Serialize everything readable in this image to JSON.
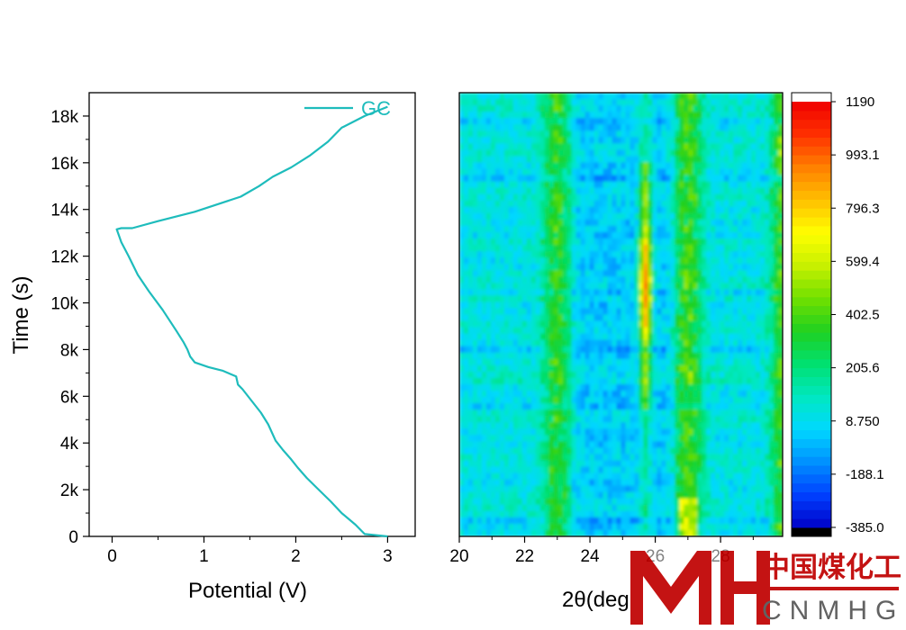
{
  "chart_data": [
    {
      "type": "line",
      "xlabel": "Potential (V)",
      "ylabel": "Time (s)",
      "xlim": [
        -0.25,
        3.3
      ],
      "ylim": [
        0,
        19000
      ],
      "xticks": [
        0,
        1,
        2,
        3
      ],
      "xtick_labels": [
        "0",
        "1",
        "2",
        "3"
      ],
      "yticks": [
        0,
        2000,
        4000,
        6000,
        8000,
        10000,
        12000,
        14000,
        16000,
        18000
      ],
      "ytick_labels": [
        "0",
        "2k",
        "4k",
        "6k",
        "8k",
        "10k",
        "12k",
        "14k",
        "16k",
        "18k"
      ],
      "grid": false,
      "legend_position": "top-right",
      "series": [
        {
          "name": "GC",
          "color": "#1ebcbc",
          "points": [
            [
              3.0,
              0
            ],
            [
              2.75,
              100
            ],
            [
              2.65,
              500
            ],
            [
              2.5,
              1000
            ],
            [
              2.38,
              1500
            ],
            [
              2.25,
              2000
            ],
            [
              2.12,
              2500
            ],
            [
              2.02,
              2950
            ],
            [
              1.95,
              3300
            ],
            [
              1.86,
              3700
            ],
            [
              1.78,
              4100
            ],
            [
              1.7,
              4800
            ],
            [
              1.62,
              5300
            ],
            [
              1.52,
              5800
            ],
            [
              1.42,
              6300
            ],
            [
              1.37,
              6500
            ],
            [
              1.35,
              6850
            ],
            [
              1.2,
              7100
            ],
            [
              1.05,
              7250
            ],
            [
              0.9,
              7450
            ],
            [
              0.85,
              7700
            ],
            [
              0.82,
              8000
            ],
            [
              0.78,
              8300
            ],
            [
              0.7,
              8800
            ],
            [
              0.55,
              9700
            ],
            [
              0.4,
              10500
            ],
            [
              0.28,
              11200
            ],
            [
              0.18,
              12000
            ],
            [
              0.1,
              12600
            ],
            [
              0.05,
              13150
            ],
            [
              0.1,
              13200
            ],
            [
              0.22,
              13200
            ],
            [
              0.5,
              13500
            ],
            [
              0.9,
              13900
            ],
            [
              1.4,
              14550
            ],
            [
              1.6,
              15000
            ],
            [
              1.75,
              15400
            ],
            [
              1.95,
              15800
            ],
            [
              2.15,
              16300
            ],
            [
              2.35,
              16900
            ],
            [
              2.5,
              17500
            ],
            [
              2.75,
              18000
            ],
            [
              3.0,
              18400
            ]
          ]
        }
      ]
    },
    {
      "type": "heatmap",
      "xlabel": "2θ(degree)",
      "xlabel_visible": "2θ(deg",
      "xlim": [
        20,
        29.9
      ],
      "ylim": [
        0,
        19000
      ],
      "xticks": [
        20,
        22,
        24,
        26,
        28
      ],
      "xtick_labels": [
        "20",
        "22",
        "24",
        "26",
        "28"
      ],
      "grid": false,
      "colorbar": {
        "min": -385.0,
        "max": 1190,
        "tick_labels": [
          "1190",
          "993.1",
          "796.3",
          "599.4",
          "402.5",
          "205.6",
          "8.750",
          "-188.1",
          "-385.0"
        ],
        "colors": [
          "#000000",
          "#0000c8",
          "#0040ff",
          "#0090ff",
          "#00d8ff",
          "#00e8c0",
          "#00e070",
          "#20d020",
          "#70e000",
          "#c8f000",
          "#ffff00",
          "#ffc000",
          "#ff8000",
          "#ff3000",
          "#f00000",
          "#ffffff"
        ]
      },
      "features": [
        {
          "center_deg": 23.0,
          "intensity": 300,
          "kind": "stripe"
        },
        {
          "center_deg": 25.7,
          "intensity": 1000,
          "kind": "peak",
          "time_range": [
            5500,
            16000
          ]
        },
        {
          "center_deg": 27.0,
          "intensity": 350,
          "kind": "stripe"
        },
        {
          "center_deg": 29.9,
          "intensity": 400,
          "kind": "edge"
        }
      ]
    }
  ],
  "watermark": {
    "logo_letters": "MH",
    "chinese_text": "中国煤化工",
    "english_text": "CNMHG"
  }
}
